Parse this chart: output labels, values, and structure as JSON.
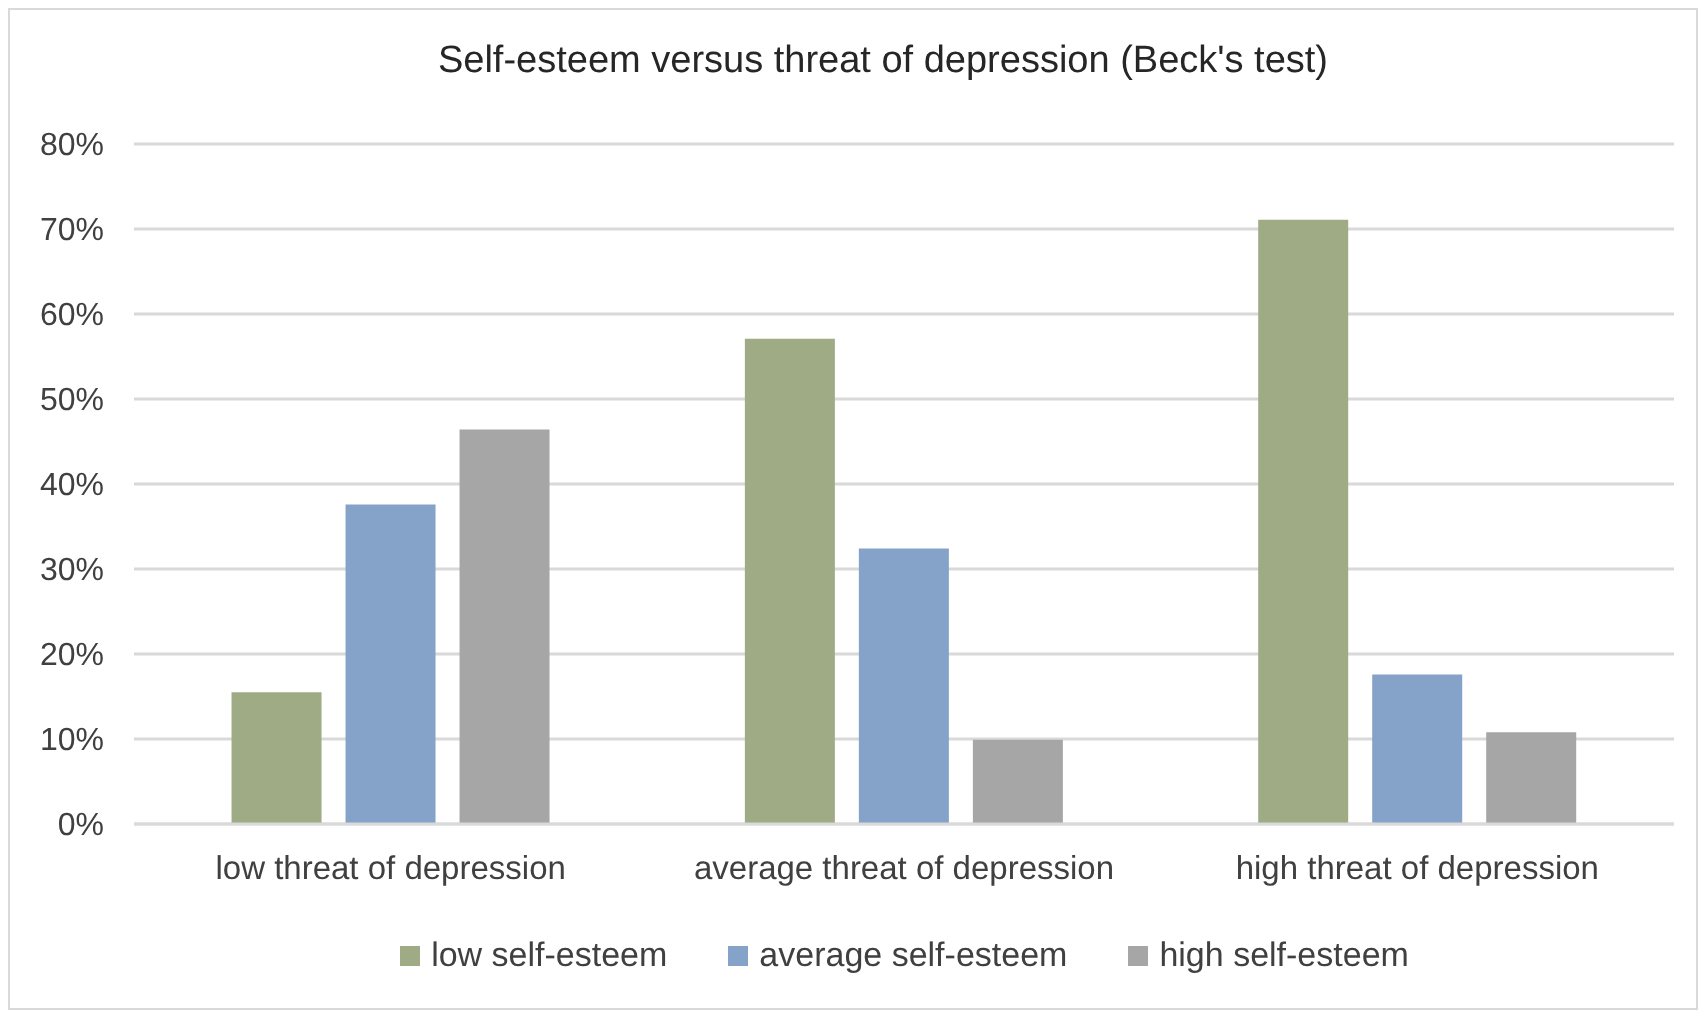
{
  "chart_data": {
    "type": "bar",
    "title": "Self-esteem versus threat of depression (Beck's test)",
    "categories": [
      "low threat of depression",
      "average threat of depression",
      "high threat of depression"
    ],
    "series": [
      {
        "name": "low self-esteem",
        "color": "#9eab85",
        "values": [
          15.5,
          57.1,
          71.1
        ]
      },
      {
        "name": "average self-esteem",
        "color": "#85a2c8",
        "values": [
          37.6,
          32.4,
          17.6
        ]
      },
      {
        "name": "high self-esteem",
        "color": "#a6a6a6",
        "values": [
          46.4,
          9.9,
          10.8
        ]
      }
    ],
    "ylim": [
      0,
      80
    ],
    "yticks": [
      {
        "value": 0,
        "label": "0%"
      },
      {
        "value": 10,
        "label": "10%"
      },
      {
        "value": 20,
        "label": "20%"
      },
      {
        "value": 30,
        "label": "30%"
      },
      {
        "value": 40,
        "label": "40%"
      },
      {
        "value": 50,
        "label": "50%"
      },
      {
        "value": 60,
        "label": "60%"
      },
      {
        "value": 70,
        "label": "70%"
      },
      {
        "value": 80,
        "label": "80%"
      }
    ],
    "grid": "y",
    "legend": "bottom"
  }
}
